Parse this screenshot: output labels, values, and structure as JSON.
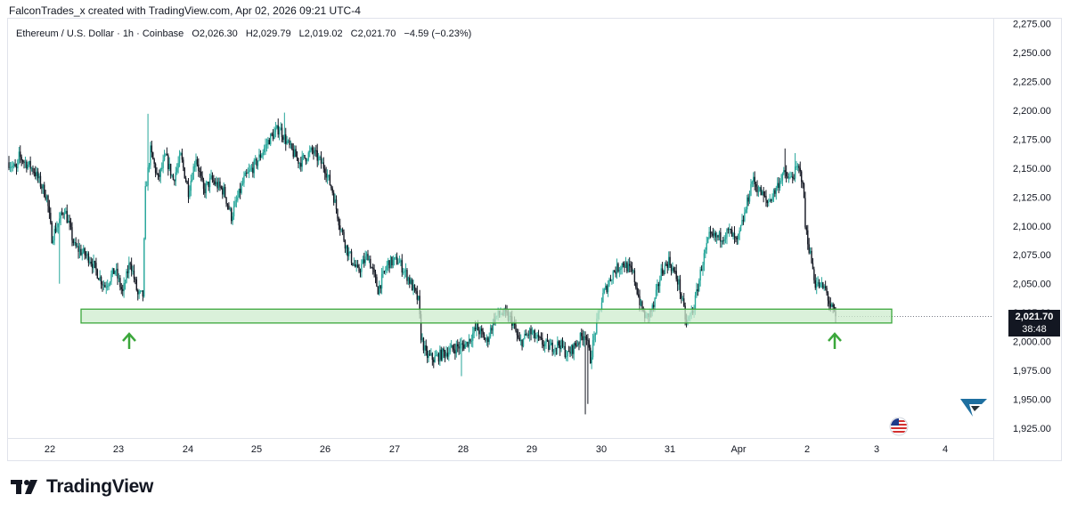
{
  "header": {
    "created_by": "FalconTrades_x created with TradingView.com, Apr 02, 2026 09:21 UTC-4"
  },
  "legend": {
    "symbol": "Ethereum / U.S. Dollar · 1h · Coinbase",
    "open": "O2,026.30",
    "high": "H2,029.79",
    "low": "L2,019.02",
    "close": "C2,021.70",
    "change": "−4.59 (−0.23%)"
  },
  "price_tag": {
    "price": "2,021.70",
    "countdown": "38:48"
  },
  "brand": {
    "name": "TradingView"
  },
  "colors": {
    "up": "#26a69a",
    "down": "#131722",
    "zone_fill": "#cdeccd",
    "zone_border": "#3ba73b",
    "arrow": "#3ba73b"
  },
  "chart_data": {
    "type": "candlestick",
    "interval": "1h",
    "y_axis": {
      "ticks": [
        "2,275.00",
        "2,250.00",
        "2,225.00",
        "2,200.00",
        "2,175.00",
        "2,150.00",
        "2,125.00",
        "2,100.00",
        "2,075.00",
        "2,050.00",
        "2,025.00",
        "2,000.00",
        "1,975.00",
        "1,950.00",
        "1,925.00"
      ],
      "range": [
        1915,
        2280
      ]
    },
    "x_axis": {
      "ticks": [
        "22",
        "23",
        "24",
        "25",
        "26",
        "27",
        "28",
        "29",
        "30",
        "31",
        "Apr",
        "2",
        "3",
        "4"
      ]
    },
    "support_zone": {
      "low": 2016,
      "high": 2028
    },
    "annotations": [
      {
        "type": "up-arrow",
        "date": "23"
      },
      {
        "type": "up-arrow",
        "date": "2"
      }
    ],
    "price_path": [
      {
        "t": 0,
        "p": 2155
      },
      {
        "t": 6,
        "p": 2148
      },
      {
        "t": 8,
        "p": 2160
      },
      {
        "t": 20,
        "p": 2148
      },
      {
        "t": 30,
        "p": 2125
      },
      {
        "t": 34,
        "p": 2090
      },
      {
        "t": 44,
        "p": 2115
      },
      {
        "t": 52,
        "p": 2082
      },
      {
        "t": 64,
        "p": 2072
      },
      {
        "t": 72,
        "p": 2055
      },
      {
        "t": 76,
        "p": 2048
      },
      {
        "t": 84,
        "p": 2062
      },
      {
        "t": 90,
        "p": 2042
      },
      {
        "t": 96,
        "p": 2070
      },
      {
        "t": 102,
        "p": 2040
      },
      {
        "t": 106,
        "p": 2040
      },
      {
        "t": 108,
        "p": 2130
      },
      {
        "t": 112,
        "p": 2165
      },
      {
        "t": 118,
        "p": 2140
      },
      {
        "t": 124,
        "p": 2160
      },
      {
        "t": 130,
        "p": 2140
      },
      {
        "t": 136,
        "p": 2160
      },
      {
        "t": 142,
        "p": 2130
      },
      {
        "t": 148,
        "p": 2160
      },
      {
        "t": 154,
        "p": 2130
      },
      {
        "t": 160,
        "p": 2140
      },
      {
        "t": 170,
        "p": 2130
      },
      {
        "t": 176,
        "p": 2108
      },
      {
        "t": 186,
        "p": 2140
      },
      {
        "t": 196,
        "p": 2155
      },
      {
        "t": 206,
        "p": 2175
      },
      {
        "t": 214,
        "p": 2185
      },
      {
        "t": 222,
        "p": 2168
      },
      {
        "t": 230,
        "p": 2155
      },
      {
        "t": 240,
        "p": 2165
      },
      {
        "t": 250,
        "p": 2150
      },
      {
        "t": 256,
        "p": 2130
      },
      {
        "t": 262,
        "p": 2100
      },
      {
        "t": 268,
        "p": 2078
      },
      {
        "t": 276,
        "p": 2060
      },
      {
        "t": 284,
        "p": 2075
      },
      {
        "t": 292,
        "p": 2045
      },
      {
        "t": 300,
        "p": 2068
      },
      {
        "t": 308,
        "p": 2070
      },
      {
        "t": 316,
        "p": 2055
      },
      {
        "t": 324,
        "p": 2035
      },
      {
        "t": 326,
        "p": 2005
      },
      {
        "t": 330,
        "p": 1988
      },
      {
        "t": 336,
        "p": 1985
      },
      {
        "t": 344,
        "p": 1990
      },
      {
        "t": 354,
        "p": 1995
      },
      {
        "t": 362,
        "p": 1998
      },
      {
        "t": 370,
        "p": 2012
      },
      {
        "t": 378,
        "p": 2000
      },
      {
        "t": 384,
        "p": 2020
      },
      {
        "t": 390,
        "p": 2025
      },
      {
        "t": 398,
        "p": 2018
      },
      {
        "t": 404,
        "p": 1998
      },
      {
        "t": 412,
        "p": 2008
      },
      {
        "t": 420,
        "p": 2000
      },
      {
        "t": 428,
        "p": 1995
      },
      {
        "t": 436,
        "p": 1998
      },
      {
        "t": 442,
        "p": 1988
      },
      {
        "t": 450,
        "p": 2000
      },
      {
        "t": 456,
        "p": 2008
      },
      {
        "t": 460,
        "p": 1985
      },
      {
        "t": 464,
        "p": 2010
      },
      {
        "t": 470,
        "p": 2040
      },
      {
        "t": 478,
        "p": 2060
      },
      {
        "t": 486,
        "p": 2068
      },
      {
        "t": 494,
        "p": 2058
      },
      {
        "t": 500,
        "p": 2030
      },
      {
        "t": 504,
        "p": 2020
      },
      {
        "t": 510,
        "p": 2030
      },
      {
        "t": 516,
        "p": 2060
      },
      {
        "t": 522,
        "p": 2070
      },
      {
        "t": 530,
        "p": 2050
      },
      {
        "t": 536,
        "p": 2015
      },
      {
        "t": 542,
        "p": 2030
      },
      {
        "t": 548,
        "p": 2065
      },
      {
        "t": 554,
        "p": 2090
      },
      {
        "t": 562,
        "p": 2090
      },
      {
        "t": 570,
        "p": 2095
      },
      {
        "t": 576,
        "p": 2085
      },
      {
        "t": 582,
        "p": 2110
      },
      {
        "t": 588,
        "p": 2140
      },
      {
        "t": 594,
        "p": 2130
      },
      {
        "t": 600,
        "p": 2120
      },
      {
        "t": 606,
        "p": 2130
      },
      {
        "t": 612,
        "p": 2145
      },
      {
        "t": 618,
        "p": 2140
      },
      {
        "t": 624,
        "p": 2150
      },
      {
        "t": 628,
        "p": 2140
      },
      {
        "t": 630,
        "p": 2100
      },
      {
        "t": 634,
        "p": 2075
      },
      {
        "t": 638,
        "p": 2050
      },
      {
        "t": 642,
        "p": 2048
      },
      {
        "t": 646,
        "p": 2045
      },
      {
        "t": 650,
        "p": 2030
      },
      {
        "t": 654,
        "p": 2021.7
      }
    ],
    "wick_extremes": [
      {
        "t": 40,
        "p": 2050
      },
      {
        "t": 110,
        "p": 2197
      },
      {
        "t": 218,
        "p": 2198
      },
      {
        "t": 456,
        "p": 1937
      },
      {
        "t": 458,
        "p": 1946
      },
      {
        "t": 358,
        "p": 1970
      },
      {
        "t": 614,
        "p": 2167
      },
      {
        "t": 622,
        "p": 2163
      }
    ]
  }
}
